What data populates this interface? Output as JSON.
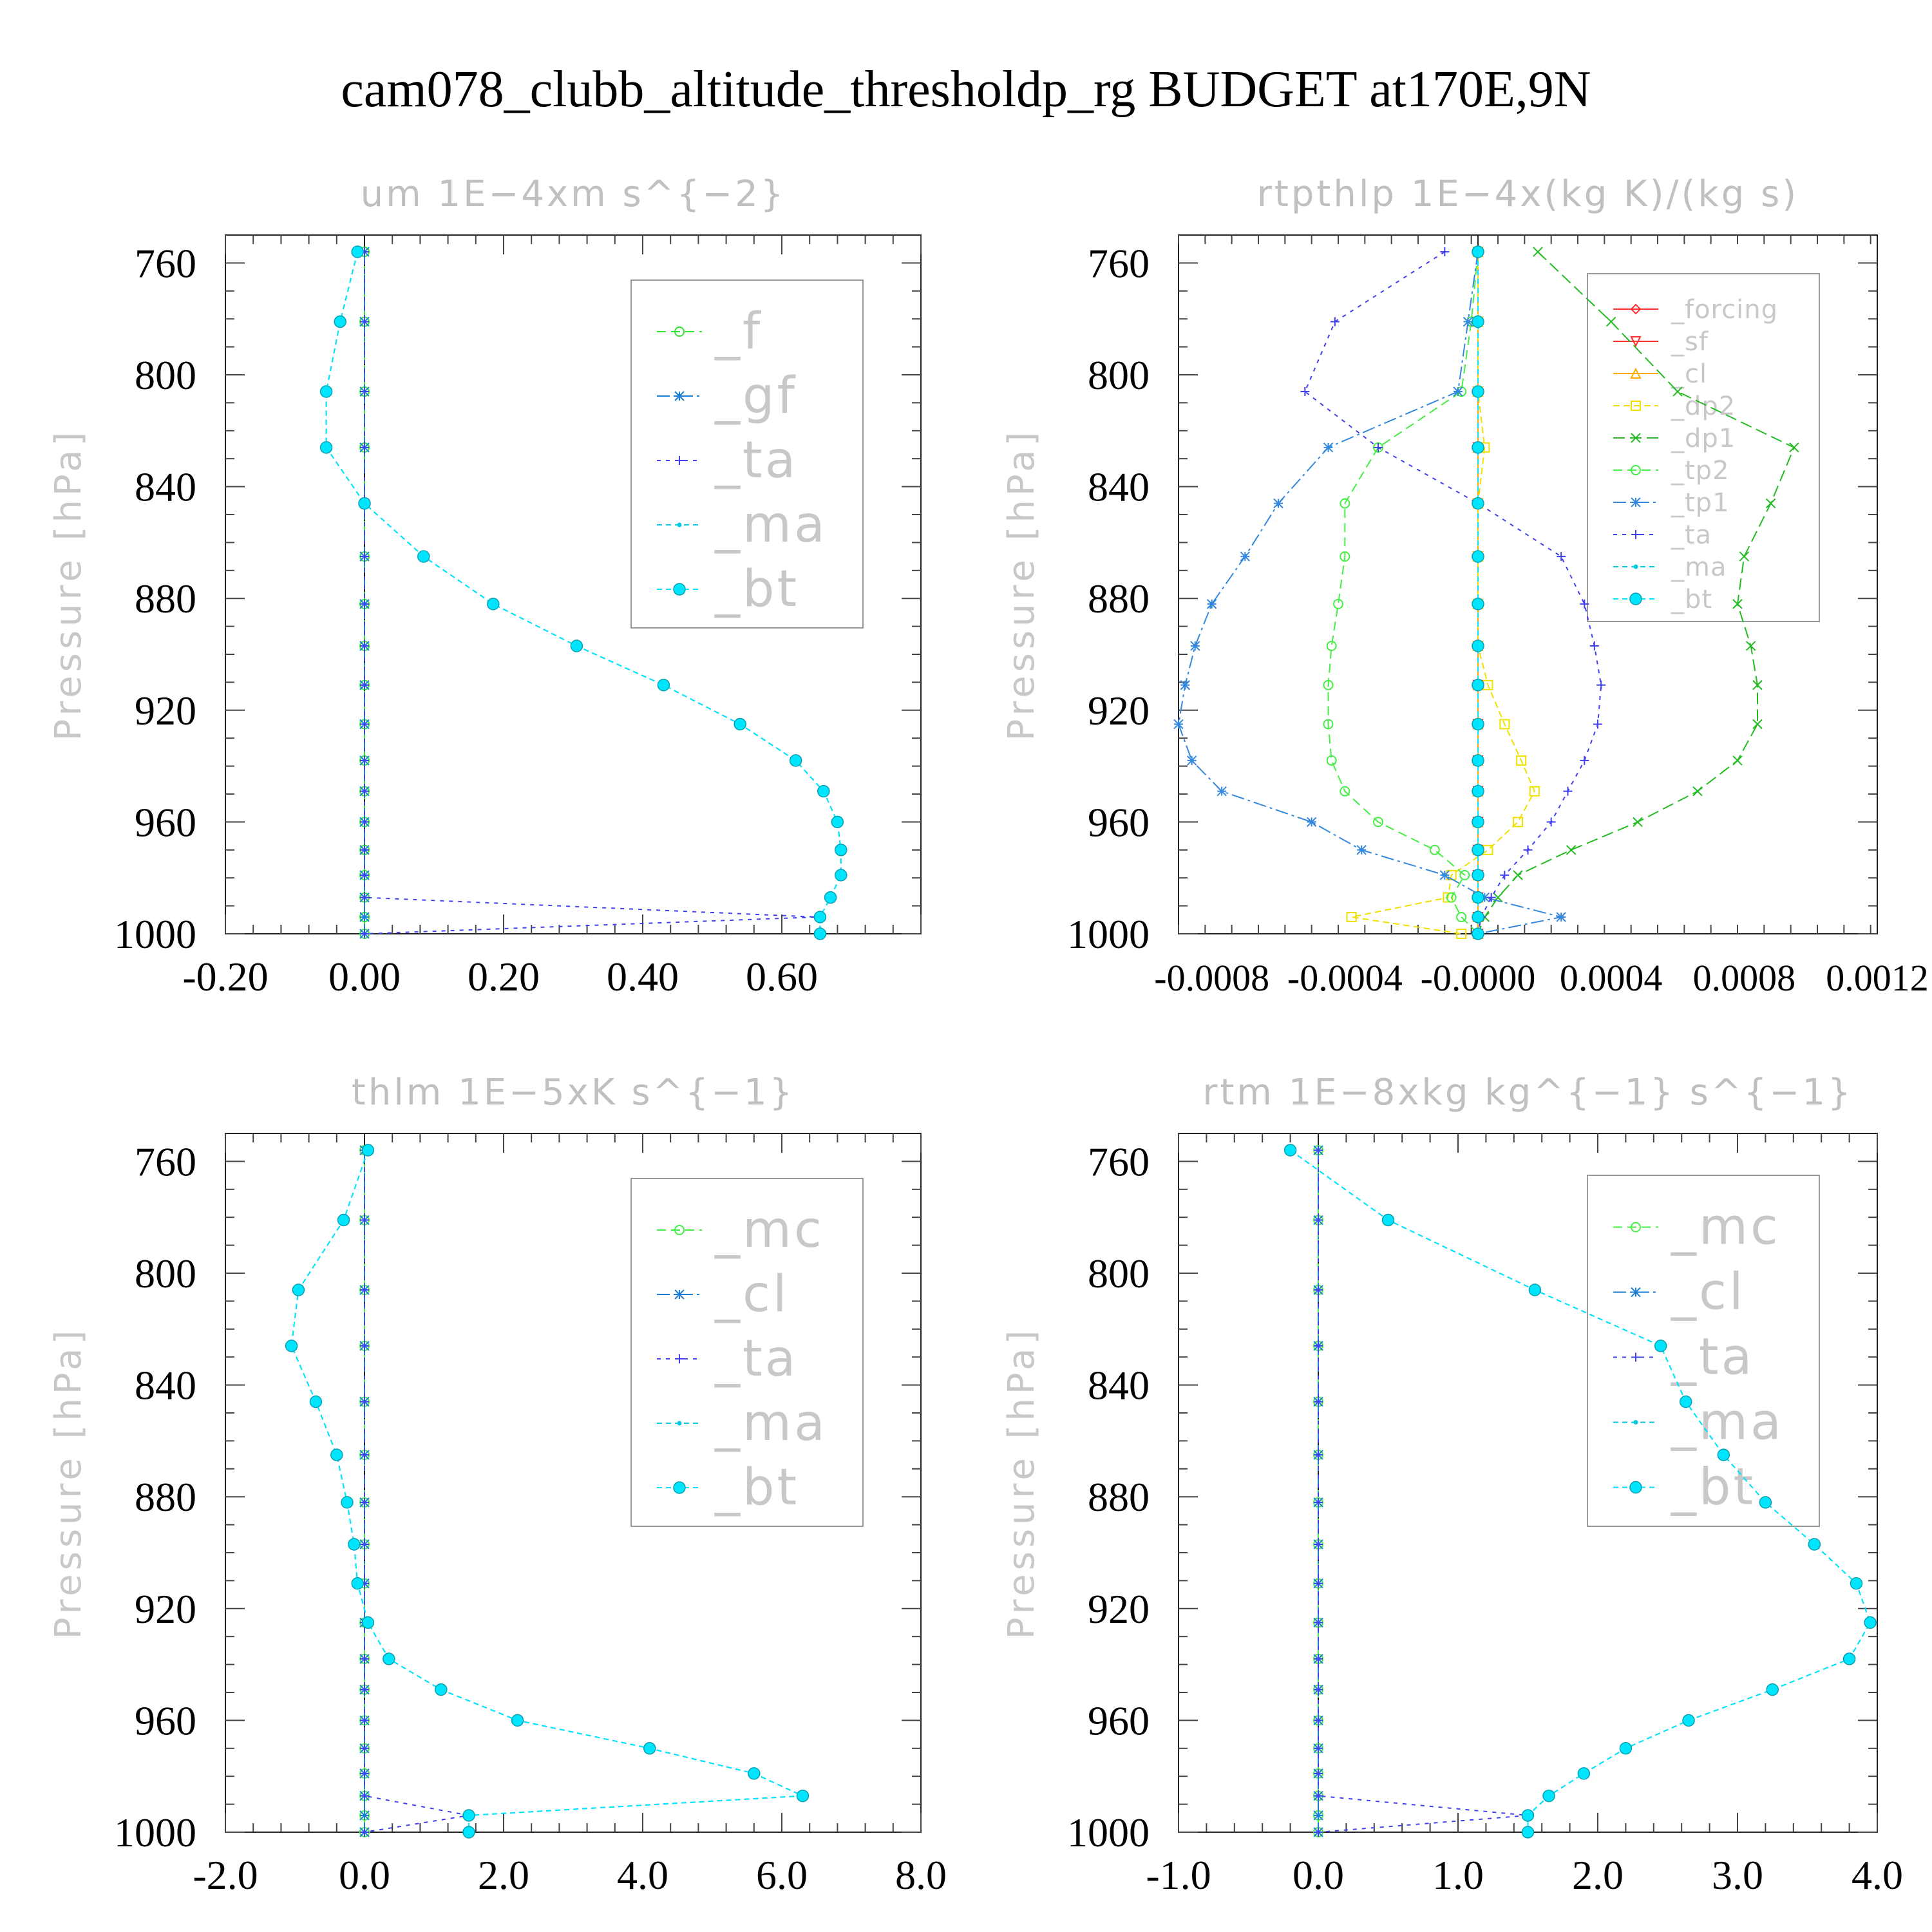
{
  "title": "cam078_clubb_altitude_thresholdp_rg  BUDGET at170E,9N",
  "chart_data": [
    {
      "type": "line",
      "title": "um   1E−4xm s^{−2}",
      "ylabel": "Pressure [hPa]",
      "xlim": [
        -0.2,
        0.8
      ],
      "ylim": [
        750,
        1000
      ],
      "yreversed": true,
      "xticks": [
        "-0.20",
        "0.00",
        "0.20",
        "0.40",
        "0.60"
      ],
      "yticks": [
        "760",
        "800",
        "840",
        "880",
        "920",
        "960",
        "1000"
      ],
      "grid": false,
      "legend": "top-right",
      "levels": [
        756,
        781,
        806,
        826,
        846,
        865,
        882,
        897,
        911,
        925,
        938,
        949,
        960,
        970,
        979,
        987,
        994,
        1000
      ],
      "series": [
        {
          "name": "_f",
          "color": "#2ee82e",
          "marker": "circle",
          "values": [
            0,
            0,
            0,
            0,
            0,
            0,
            0,
            0,
            0,
            0,
            0,
            0,
            0,
            0,
            0,
            0,
            0,
            0
          ]
        },
        {
          "name": "_gf",
          "color": "#1a7fd4",
          "marker": "star",
          "values": [
            0,
            0,
            0,
            0,
            0,
            0,
            0,
            0,
            0,
            0,
            0,
            0,
            0,
            0,
            0,
            0,
            0,
            0
          ]
        },
        {
          "name": "_ta",
          "color": "#4040ee",
          "marker": "plus",
          "values": [
            0,
            0,
            0,
            0,
            0,
            0,
            0,
            0,
            0,
            0,
            0,
            0,
            0,
            0,
            0,
            0,
            0.65,
            0
          ]
        },
        {
          "name": "_ma",
          "color": "#00c8e0",
          "marker": "dot",
          "values": [
            -0.01,
            -0.035,
            -0.055,
            -0.055,
            0.0,
            0.085,
            0.185,
            0.305,
            0.43,
            0.54,
            0.62,
            0.66,
            0.68,
            0.685,
            0.685,
            0.67,
            0.655,
            0.655
          ]
        },
        {
          "name": "_bt",
          "color": "#00e5ff",
          "marker": "bigdot",
          "values": [
            -0.01,
            -0.035,
            -0.055,
            -0.055,
            0.0,
            0.085,
            0.185,
            0.305,
            0.43,
            0.54,
            0.62,
            0.66,
            0.68,
            0.685,
            0.685,
            0.67,
            0.655,
            0.655
          ]
        }
      ]
    },
    {
      "type": "line",
      "title": "rtpthlp   1E−4x(kg K)/(kg s)",
      "ylabel": "Pressure [hPa]",
      "xlim": [
        -0.0009,
        0.0012
      ],
      "ylim": [
        750,
        1000
      ],
      "yreversed": true,
      "xticks": [
        "-0.0008",
        "-0.0004",
        "-0.0000",
        "0.0004",
        "0.0008",
        "0.0012"
      ],
      "yticks": [
        "760",
        "800",
        "840",
        "880",
        "920",
        "960",
        "1000"
      ],
      "grid": false,
      "legend": "top-right",
      "levels": [
        756,
        781,
        806,
        826,
        846,
        865,
        882,
        897,
        911,
        925,
        938,
        949,
        960,
        970,
        979,
        987,
        994,
        1000
      ],
      "series": [
        {
          "name": "_forcing",
          "color": "#ff3030",
          "marker": "diamond",
          "values": [
            0,
            0,
            0,
            0,
            0,
            0,
            0,
            0,
            0,
            0,
            0,
            0,
            0,
            0,
            0,
            0,
            0,
            0
          ]
        },
        {
          "name": "_sf",
          "color": "#ff3030",
          "marker": "tridown",
          "values": [
            0,
            0,
            0,
            0,
            0,
            0,
            0,
            0,
            0,
            0,
            0,
            0,
            0,
            0,
            0,
            0,
            0,
            0
          ]
        },
        {
          "name": "_cl",
          "color": "#ffaa00",
          "marker": "triangle",
          "values": [
            0,
            0,
            0,
            0,
            0,
            0,
            0,
            0,
            0,
            0,
            0,
            0,
            0,
            0,
            0,
            0,
            0,
            0
          ]
        },
        {
          "name": "_dp2",
          "color": "#f0e000",
          "marker": "square",
          "values": [
            0,
            0,
            0,
            2e-05,
            0,
            0,
            0,
            0,
            3e-05,
            8e-05,
            0.00013,
            0.00017,
            0.00012,
            3e-05,
            -8e-05,
            -9e-05,
            -0.00038,
            -5e-05
          ]
        },
        {
          "name": "_dp1",
          "color": "#22bb22",
          "marker": "x",
          "values": [
            0.00018,
            0.0004,
            0.0006,
            0.00095,
            0.00088,
            0.0008,
            0.00078,
            0.00082,
            0.00084,
            0.00084,
            0.00078,
            0.00066,
            0.00048,
            0.00028,
            0.00012,
            6e-05,
            2e-05,
            0
          ]
        },
        {
          "name": "_tp2",
          "color": "#44ee44",
          "marker": "circle",
          "values": [
            0,
            -2e-05,
            -5e-05,
            -0.0003,
            -0.0004,
            -0.0004,
            -0.00042,
            -0.00044,
            -0.00045,
            -0.00045,
            -0.00044,
            -0.0004,
            -0.0003,
            -0.00013,
            -4e-05,
            -8e-05,
            -5e-05,
            0
          ]
        },
        {
          "name": "_tp1",
          "color": "#3388dd",
          "marker": "star",
          "values": [
            0,
            -3e-05,
            -6e-05,
            -0.00045,
            -0.0006,
            -0.0007,
            -0.0008,
            -0.00085,
            -0.00088,
            -0.0009,
            -0.00086,
            -0.00077,
            -0.0005,
            -0.00035,
            -0.0001,
            2e-05,
            0.00025,
            0
          ]
        },
        {
          "name": "_ta",
          "color": "#4040ee",
          "marker": "plus",
          "values": [
            -0.0001,
            -0.00043,
            -0.00052,
            -0.0003,
            0,
            0.00025,
            0.00032,
            0.00035,
            0.00037,
            0.00036,
            0.00032,
            0.00027,
            0.00022,
            0.00015,
            8e-05,
            4e-05,
            1e-05,
            0
          ]
        },
        {
          "name": "_ma",
          "color": "#00c8e0",
          "marker": "dot",
          "values": [
            0,
            0,
            0,
            0,
            0,
            0,
            0,
            0,
            0,
            0,
            0,
            0,
            0,
            0,
            0,
            0,
            0,
            0
          ]
        },
        {
          "name": "_bt",
          "color": "#00e5ff",
          "marker": "bigdot",
          "values": [
            0,
            0,
            0,
            0,
            0,
            0,
            0,
            0,
            0,
            0,
            0,
            0,
            0,
            0,
            0,
            0,
            0,
            0
          ]
        }
      ]
    },
    {
      "type": "line",
      "title": "thlm   1E−5xK s^{−1}",
      "ylabel": "Pressure [hPa]",
      "xlim": [
        -2.0,
        8.0
      ],
      "ylim": [
        750,
        1000
      ],
      "yreversed": true,
      "xticks": [
        "-2.0",
        "0.0",
        "2.0",
        "4.0",
        "6.0",
        "8.0"
      ],
      "yticks": [
        "760",
        "800",
        "840",
        "880",
        "920",
        "960",
        "1000"
      ],
      "grid": false,
      "legend": "top-right",
      "levels": [
        756,
        781,
        806,
        826,
        846,
        865,
        882,
        897,
        911,
        925,
        938,
        949,
        960,
        970,
        979,
        987,
        994,
        1000
      ],
      "series": [
        {
          "name": "_mc",
          "color": "#44ee44",
          "marker": "circle",
          "values": [
            0,
            0,
            0,
            0,
            0,
            0,
            0,
            0,
            0,
            0,
            0,
            0,
            0,
            0,
            0,
            0,
            0,
            0
          ]
        },
        {
          "name": "_cl",
          "color": "#1a7fd4",
          "marker": "star",
          "values": [
            0,
            0,
            0,
            0,
            0,
            0,
            0,
            0,
            0,
            0,
            0,
            0,
            0,
            0,
            0,
            0,
            0,
            0
          ]
        },
        {
          "name": "_ta",
          "color": "#4040ee",
          "marker": "plus",
          "values": [
            0,
            0,
            0,
            0,
            0,
            0,
            0,
            0,
            0,
            0,
            0,
            0,
            0,
            0,
            0,
            0,
            1.5,
            0
          ]
        },
        {
          "name": "_ma",
          "color": "#00c8e0",
          "marker": "dot",
          "values": [
            0.05,
            -0.3,
            -0.95,
            -1.05,
            -0.7,
            -0.4,
            -0.25,
            -0.15,
            -0.1,
            0.05,
            0.35,
            1.1,
            2.2,
            4.1,
            5.6,
            6.3,
            1.5,
            1.5
          ]
        },
        {
          "name": "_bt",
          "color": "#00e5ff",
          "marker": "bigdot",
          "values": [
            0.05,
            -0.3,
            -0.95,
            -1.05,
            -0.7,
            -0.4,
            -0.25,
            -0.15,
            -0.1,
            0.05,
            0.35,
            1.1,
            2.2,
            4.1,
            5.6,
            6.3,
            1.5,
            1.5
          ]
        }
      ]
    },
    {
      "type": "line",
      "title": "rtm   1E−8xkg kg^{−1} s^{−1}",
      "ylabel": "Pressure [hPa]",
      "xlim": [
        -1.0,
        4.0
      ],
      "ylim": [
        750,
        1000
      ],
      "yreversed": true,
      "xticks": [
        "-1.0",
        "0.0",
        "1.0",
        "2.0",
        "3.0",
        "4.0"
      ],
      "yticks": [
        "760",
        "800",
        "840",
        "880",
        "920",
        "960",
        "1000"
      ],
      "grid": false,
      "legend": "top-right",
      "levels": [
        756,
        781,
        806,
        826,
        846,
        865,
        882,
        897,
        911,
        925,
        938,
        949,
        960,
        970,
        979,
        987,
        994,
        1000
      ],
      "series": [
        {
          "name": "_mc",
          "color": "#44ee44",
          "marker": "circle",
          "values": [
            0,
            0,
            0,
            0,
            0,
            0,
            0,
            0,
            0,
            0,
            0,
            0,
            0,
            0,
            0,
            0,
            0,
            0
          ]
        },
        {
          "name": "_cl",
          "color": "#1a7fd4",
          "marker": "star",
          "values": [
            0,
            0,
            0,
            0,
            0,
            0,
            0,
            0,
            0,
            0,
            0,
            0,
            0,
            0,
            0,
            0,
            0,
            0
          ]
        },
        {
          "name": "_ta",
          "color": "#4040ee",
          "marker": "plus",
          "values": [
            0,
            0,
            0,
            0,
            0,
            0,
            0,
            0,
            0,
            0,
            0,
            0,
            0,
            0,
            0,
            0,
            1.5,
            0
          ]
        },
        {
          "name": "_ma",
          "color": "#00c8e0",
          "marker": "dot",
          "values": [
            -0.2,
            0.5,
            1.55,
            2.45,
            2.63,
            2.9,
            3.2,
            3.55,
            3.85,
            3.95,
            3.8,
            3.25,
            2.65,
            2.2,
            1.9,
            1.65,
            1.5,
            1.5
          ]
        },
        {
          "name": "_bt",
          "color": "#00e5ff",
          "marker": "bigdot",
          "values": [
            -0.2,
            0.5,
            1.55,
            2.45,
            2.63,
            2.9,
            3.2,
            3.55,
            3.85,
            3.95,
            3.8,
            3.25,
            2.65,
            2.2,
            1.9,
            1.65,
            1.5,
            1.5
          ]
        }
      ]
    }
  ]
}
